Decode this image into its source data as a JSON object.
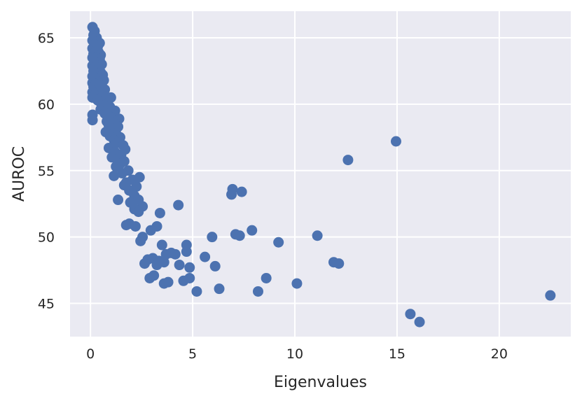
{
  "chart_data": {
    "type": "scatter",
    "title": "",
    "xlabel": "Eigenvalues",
    "ylabel": "AUROC",
    "xlim": [
      -1.0,
      23.5
    ],
    "ylim": [
      42.5,
      67.0
    ],
    "x_ticks": [
      0,
      5,
      10,
      15,
      20
    ],
    "y_ticks": [
      45,
      50,
      55,
      60,
      65
    ],
    "x_tick_labels": [
      "0",
      "5",
      "10",
      "15",
      "20"
    ],
    "y_tick_labels": [
      "45",
      "50",
      "55",
      "60",
      "65"
    ],
    "grid": true,
    "background": "#eaeaf2",
    "point_color": "#4c72b0",
    "points": [
      [
        0.1,
        65.8
      ],
      [
        0.2,
        65.5
      ],
      [
        0.15,
        65.2
      ],
      [
        0.3,
        65.0
      ],
      [
        0.1,
        64.8
      ],
      [
        0.45,
        64.6
      ],
      [
        0.2,
        64.5
      ],
      [
        0.35,
        64.3
      ],
      [
        0.1,
        64.2
      ],
      [
        0.25,
        64.0
      ],
      [
        0.4,
        63.9
      ],
      [
        0.15,
        63.8
      ],
      [
        0.5,
        63.7
      ],
      [
        0.1,
        63.5
      ],
      [
        0.3,
        63.5
      ],
      [
        0.45,
        63.4
      ],
      [
        0.2,
        63.2
      ],
      [
        0.35,
        63.1
      ],
      [
        0.55,
        63.0
      ],
      [
        0.1,
        62.9
      ],
      [
        0.25,
        62.8
      ],
      [
        0.4,
        62.7
      ],
      [
        0.15,
        62.5
      ],
      [
        0.5,
        62.4
      ],
      [
        0.3,
        62.3
      ],
      [
        0.6,
        62.2
      ],
      [
        0.1,
        62.1
      ],
      [
        0.2,
        62.0
      ],
      [
        0.45,
        61.9
      ],
      [
        0.65,
        61.8
      ],
      [
        0.35,
        61.7
      ],
      [
        0.1,
        61.6
      ],
      [
        0.25,
        61.5
      ],
      [
        0.55,
        61.4
      ],
      [
        0.15,
        61.3
      ],
      [
        0.4,
        61.2
      ],
      [
        0.7,
        61.1
      ],
      [
        0.3,
        61.0
      ],
      [
        0.1,
        60.9
      ],
      [
        0.5,
        60.8
      ],
      [
        0.2,
        60.7
      ],
      [
        0.6,
        60.6
      ],
      [
        1.0,
        60.5
      ],
      [
        0.1,
        60.5
      ],
      [
        0.75,
        60.4
      ],
      [
        0.35,
        60.3
      ],
      [
        0.45,
        60.2
      ],
      [
        0.85,
        60.1
      ],
      [
        0.55,
        60.0
      ],
      [
        0.65,
        59.9
      ],
      [
        0.95,
        59.8
      ],
      [
        0.5,
        59.6
      ],
      [
        0.8,
        59.5
      ],
      [
        1.2,
        59.5
      ],
      [
        0.7,
        59.3
      ],
      [
        0.1,
        59.2
      ],
      [
        0.9,
        59.1
      ],
      [
        1.0,
        59.0
      ],
      [
        1.4,
        58.9
      ],
      [
        0.1,
        58.8
      ],
      [
        0.8,
        58.7
      ],
      [
        1.1,
        58.6
      ],
      [
        1.2,
        58.5
      ],
      [
        0.9,
        58.4
      ],
      [
        1.35,
        58.3
      ],
      [
        1.05,
        58.1
      ],
      [
        0.75,
        57.9
      ],
      [
        1.25,
        57.8
      ],
      [
        0.95,
        57.6
      ],
      [
        1.45,
        57.5
      ],
      [
        1.15,
        57.3
      ],
      [
        1.3,
        57.1
      ],
      [
        1.6,
        56.9
      ],
      [
        0.9,
        56.7
      ],
      [
        1.7,
        56.6
      ],
      [
        1.2,
        56.4
      ],
      [
        1.5,
        56.2
      ],
      [
        1.05,
        56.0
      ],
      [
        1.35,
        55.9
      ],
      [
        1.65,
        55.7
      ],
      [
        1.45,
        55.5
      ],
      [
        1.25,
        55.3
      ],
      [
        1.85,
        55.0
      ],
      [
        1.55,
        54.8
      ],
      [
        1.15,
        54.6
      ],
      [
        2.4,
        54.5
      ],
      [
        2.05,
        54.3
      ],
      [
        1.75,
        54.1
      ],
      [
        1.65,
        53.9
      ],
      [
        2.25,
        53.8
      ],
      [
        1.9,
        53.5
      ],
      [
        2.15,
        53.1
      ],
      [
        2.35,
        52.8
      ],
      [
        1.35,
        52.8
      ],
      [
        1.95,
        52.6
      ],
      [
        2.55,
        52.3
      ],
      [
        2.15,
        52.1
      ],
      [
        2.35,
        51.9
      ],
      [
        3.4,
        51.8
      ],
      [
        4.3,
        52.4
      ],
      [
        1.9,
        51.0
      ],
      [
        1.75,
        50.9
      ],
      [
        2.2,
        50.8
      ],
      [
        3.25,
        50.8
      ],
      [
        2.95,
        50.5
      ],
      [
        2.55,
        50.0
      ],
      [
        2.45,
        49.7
      ],
      [
        3.5,
        49.4
      ],
      [
        4.7,
        49.4
      ],
      [
        2.8,
        48.3
      ],
      [
        2.65,
        48.0
      ],
      [
        3.05,
        48.4
      ],
      [
        3.35,
        48.2
      ],
      [
        3.6,
        48.1
      ],
      [
        3.25,
        47.9
      ],
      [
        3.7,
        48.7
      ],
      [
        3.95,
        48.8
      ],
      [
        4.15,
        48.7
      ],
      [
        4.7,
        48.9
      ],
      [
        4.35,
        47.9
      ],
      [
        4.85,
        47.7
      ],
      [
        2.9,
        46.9
      ],
      [
        3.1,
        47.1
      ],
      [
        3.6,
        46.5
      ],
      [
        3.8,
        46.6
      ],
      [
        4.55,
        46.7
      ],
      [
        4.85,
        46.9
      ],
      [
        5.2,
        45.9
      ],
      [
        5.6,
        48.5
      ],
      [
        5.95,
        50.0
      ],
      [
        6.1,
        47.8
      ],
      [
        6.3,
        46.1
      ],
      [
        6.9,
        53.2
      ],
      [
        6.95,
        53.6
      ],
      [
        7.4,
        53.4
      ],
      [
        7.1,
        50.2
      ],
      [
        7.3,
        50.1
      ],
      [
        7.9,
        50.5
      ],
      [
        8.2,
        45.9
      ],
      [
        8.6,
        46.9
      ],
      [
        9.2,
        49.6
      ],
      [
        10.1,
        46.5
      ],
      [
        11.1,
        50.1
      ],
      [
        11.9,
        48.1
      ],
      [
        12.15,
        48.0
      ],
      [
        12.6,
        55.8
      ],
      [
        14.95,
        57.2
      ],
      [
        15.65,
        44.2
      ],
      [
        16.1,
        43.6
      ],
      [
        22.5,
        45.6
      ]
    ]
  }
}
